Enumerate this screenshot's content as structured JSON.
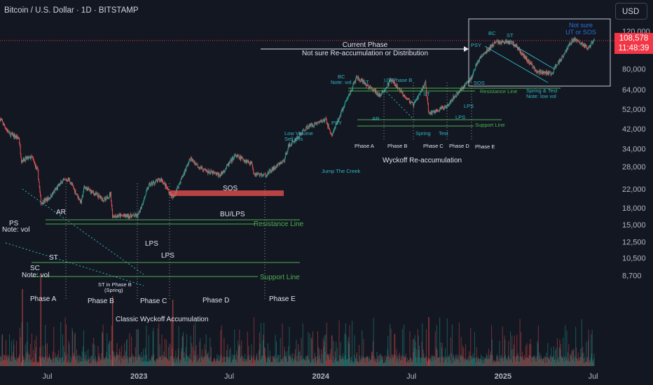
{
  "header": {
    "symbol_title": "Bitcoin / U.S. Dollar · 1D · BITSTAMP",
    "currency_button": "USD"
  },
  "price_tag": {
    "price": "108,578",
    "countdown": "11:48:39"
  },
  "colors": {
    "background": "#131722",
    "up": "#26a69a",
    "down": "#ef5350",
    "annotation_green": "#4caf50",
    "annotation_cyan": "#2fb5c1",
    "annotation_blue": "#2a6fd6",
    "price_line": "#f23645"
  },
  "annotations": {
    "classic": {
      "ps": "PS",
      "ps_note": "Note: vol",
      "sc": "SC",
      "sc_note": "Note: vol",
      "st": "ST",
      "ar": "AR",
      "st_phase_b": "ST in Phase B",
      "spring": "(Spring)",
      "lps1": "LPS",
      "lps2": "LPS",
      "sos": "SOS",
      "bu_lps": "BU/LPS",
      "resistance": "Resistance Line",
      "support": "Support Line",
      "phase_a": "Phase A",
      "phase_b": "Phase B",
      "phase_c": "Phase C",
      "phase_d": "Phase D",
      "phase_e": "Phase E",
      "title": "Classic Wyckoff Accumulation"
    },
    "reaccum": {
      "low_volume": "Low Volume",
      "sell_offs": "Sell offs",
      "jump_creek": "Jump The Creek",
      "psy": "PSY",
      "bc": "BC",
      "bc_note": "Note: vol",
      "st": "ST",
      "ut_phase_b": "UT Phase B",
      "ar": "AR",
      "st2": "ST",
      "spring": "Spring",
      "test": "Test",
      "lps": "LPS",
      "lps2": "LPS",
      "sos": "SOS",
      "resistance": "Resistance Line",
      "support": "Support Line",
      "phase_a": "Phase A",
      "phase_b": "Phase B",
      "phase_c": "Phase C",
      "phase_d": "Phase D",
      "phase_e": "Phase E",
      "title": "Wyckoff Re-accumulation"
    },
    "current": {
      "title": "Current Phase",
      "subtitle": "Not sure Re-accumulation or Distribution",
      "psy": "PSY",
      "bc": "BC",
      "st": "ST",
      "not_sure": "Not sure",
      "ut_sos": "UT or SOS",
      "spring_test": "Spring & Test",
      "note": "Note: low vol"
    }
  },
  "chart_data": {
    "type": "candlestick",
    "title": "Bitcoin / U.S. Dollar · 1D · BITSTAMP",
    "y_scale": "log",
    "y_ticks": [
      120000,
      100000,
      80000,
      64000,
      52000,
      42000,
      34000,
      28000,
      22000,
      18000,
      15000,
      12500,
      10500,
      8700
    ],
    "y_tick_labels": [
      "120,000",
      "100,000",
      "80,000",
      "64,000",
      "52,000",
      "42,000",
      "34,000",
      "28,000",
      "22,000",
      "18,000",
      "15,000",
      "12,500",
      "10,500",
      "8,700"
    ],
    "x_ticks": [
      "Jul",
      "2023",
      "Jul",
      "2024",
      "Jul",
      "2025",
      "Jul"
    ],
    "last_price": 108578,
    "price_path": [
      [
        "2022-03-28",
        47000
      ],
      [
        "2022-04-15",
        40000
      ],
      [
        "2022-05-05",
        38000
      ],
      [
        "2022-05-10",
        30000
      ],
      [
        "2022-05-31",
        31000
      ],
      [
        "2022-06-12",
        26500
      ],
      [
        "2022-06-18",
        19000
      ],
      [
        "2022-07-05",
        20000
      ],
      [
        "2022-07-30",
        23800
      ],
      [
        "2022-08-13",
        24500
      ],
      [
        "2022-09-07",
        19000
      ],
      [
        "2022-09-13",
        22500
      ],
      [
        "2022-10-25",
        19500
      ],
      [
        "2022-11-05",
        21000
      ],
      [
        "2022-11-09",
        16500
      ],
      [
        "2022-12-30",
        16500
      ],
      [
        "2023-01-21",
        23000
      ],
      [
        "2023-02-15",
        24500
      ],
      [
        "2023-03-10",
        20000
      ],
      [
        "2023-04-14",
        30500
      ],
      [
        "2023-05-10",
        27000
      ],
      [
        "2023-06-13",
        25500
      ],
      [
        "2023-07-13",
        31500
      ],
      [
        "2023-08-16",
        29000
      ],
      [
        "2023-08-20",
        26000
      ],
      [
        "2023-09-11",
        25500
      ],
      [
        "2023-10-20",
        30000
      ],
      [
        "2023-10-27",
        34500
      ],
      [
        "2023-12-05",
        43000
      ],
      [
        "2024-01-11",
        46500
      ],
      [
        "2024-01-23",
        39000
      ],
      [
        "2024-02-14",
        52000
      ],
      [
        "2024-03-13",
        73000
      ],
      [
        "2024-04-30",
        60000
      ],
      [
        "2024-05-21",
        71000
      ],
      [
        "2024-07-05",
        54000
      ],
      [
        "2024-07-29",
        69000
      ],
      [
        "2024-08-05",
        49500
      ],
      [
        "2024-09-06",
        53000
      ],
      [
        "2024-10-29",
        72500
      ],
      [
        "2024-11-12",
        88000
      ],
      [
        "2024-12-17",
        107000
      ],
      [
        "2025-01-20",
        107000
      ],
      [
        "2025-03-10",
        78000
      ],
      [
        "2025-04-08",
        76000
      ],
      [
        "2025-05-22",
        111000
      ],
      [
        "2025-06-22",
        100000
      ],
      [
        "2025-07-03",
        108578
      ]
    ],
    "levels": [
      {
        "label": "Resistance Line",
        "value": 24500
      },
      {
        "label": "Support Line",
        "value": 16000
      },
      {
        "label": "Resistance Line",
        "value": 72000
      },
      {
        "label": "Support Line",
        "value": 56500
      },
      {
        "label": "SOS",
        "value": 30500
      }
    ],
    "volume_panel": true,
    "grid": false
  }
}
